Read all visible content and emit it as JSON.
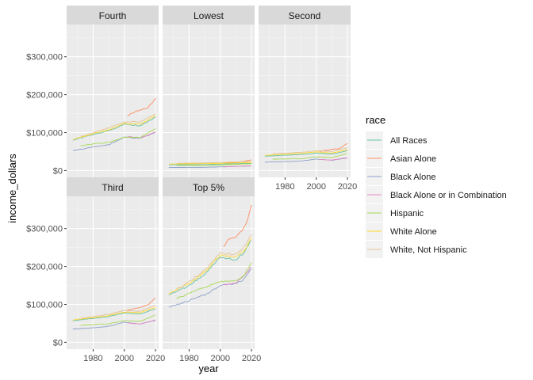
{
  "chart_data": {
    "type": "line",
    "xlabel": "year",
    "ylabel": "income_dollars",
    "x_ticks": [
      1980,
      2000,
      2020
    ],
    "y_ticks": [
      0,
      100000,
      200000,
      300000
    ],
    "y_tick_labels": [
      "$0",
      "$100,000",
      "$200,000",
      "$300,000"
    ],
    "xlim": [
      1963,
      2022
    ],
    "ylim": [
      -18000,
      385000
    ],
    "legend": {
      "title": "race",
      "position": "right",
      "entries": [
        "All Races",
        "Asian Alone",
        "Black Alone",
        "Black Alone or in Combination",
        "Hispanic",
        "White Alone",
        "White, Not Hispanic"
      ]
    },
    "colors": {
      "All Races": "#66c2a5",
      "Asian Alone": "#fc8d62",
      "Black Alone": "#8da0cb",
      "Black Alone or in Combination": "#e78ac3",
      "Hispanic": "#a6d854",
      "White Alone": "#ffd92f",
      "White, Not Hispanic": "#e5c494"
    },
    "series_meta": {
      "All Races": {
        "start": 1967
      },
      "Asian Alone": {
        "start": 2002
      },
      "Black Alone": {
        "start": 1967
      },
      "Black Alone or in Combination": {
        "start": 2002
      },
      "Hispanic": {
        "start": 1972
      },
      "White Alone": {
        "start": 1967
      },
      "White, Not Hispanic": {
        "start": 1972
      }
    },
    "facets": [
      {
        "name": "Fourth",
        "anchors": {
          "All Races": [
            [
              1967,
              80000
            ],
            [
              1980,
              95000
            ],
            [
              1990,
              105000
            ],
            [
              2000,
              122000
            ],
            [
              2010,
              118000
            ],
            [
              2020,
              140000
            ]
          ],
          "Asian Alone": [
            [
              2002,
              145000
            ],
            [
              2010,
              160000
            ],
            [
              2015,
              165000
            ],
            [
              2020,
              190000
            ]
          ],
          "Black Alone": [
            [
              1967,
              52000
            ],
            [
              1980,
              62000
            ],
            [
              1990,
              68000
            ],
            [
              2000,
              88000
            ],
            [
              2010,
              85000
            ],
            [
              2020,
              100000
            ]
          ],
          "Black Alone or in Combination": [
            [
              2002,
              90000
            ],
            [
              2010,
              86000
            ],
            [
              2020,
              101000
            ]
          ],
          "Hispanic": [
            [
              1972,
              65000
            ],
            [
              1980,
              70000
            ],
            [
              1990,
              74000
            ],
            [
              2000,
              88000
            ],
            [
              2010,
              87000
            ],
            [
              2020,
              110000
            ]
          ],
          "White Alone": [
            [
              1967,
              82000
            ],
            [
              1980,
              97000
            ],
            [
              1990,
              108000
            ],
            [
              2000,
              124000
            ],
            [
              2010,
              122000
            ],
            [
              2020,
              145000
            ]
          ],
          "White, Not Hispanic": [
            [
              1972,
              90000
            ],
            [
              1980,
              100000
            ],
            [
              1990,
              112000
            ],
            [
              2000,
              128000
            ],
            [
              2010,
              128000
            ],
            [
              2020,
              150000
            ]
          ]
        }
      },
      {
        "name": "Lowest",
        "anchors": {
          "All Races": [
            [
              1967,
              15000
            ],
            [
              1990,
              16000
            ],
            [
              2020,
              19000
            ]
          ],
          "Asian Alone": [
            [
              2002,
              20000
            ],
            [
              2010,
              21000
            ],
            [
              2020,
              28000
            ]
          ],
          "Black Alone": [
            [
              1967,
              8000
            ],
            [
              1990,
              8500
            ],
            [
              2020,
              12000
            ]
          ],
          "Black Alone or in Combination": [
            [
              2002,
              9500
            ],
            [
              2020,
              12500
            ]
          ],
          "Hispanic": [
            [
              1972,
              13000
            ],
            [
              1990,
              12500
            ],
            [
              2020,
              18000
            ]
          ],
          "White Alone": [
            [
              1967,
              17000
            ],
            [
              1990,
              18000
            ],
            [
              2020,
              21000
            ]
          ],
          "White, Not Hispanic": [
            [
              1972,
              19000
            ],
            [
              1990,
              20000
            ],
            [
              2020,
              24000
            ]
          ]
        }
      },
      {
        "name": "Second",
        "anchors": {
          "All Races": [
            [
              1967,
              38000
            ],
            [
              1990,
              42000
            ],
            [
              2000,
              46000
            ],
            [
              2010,
              43000
            ],
            [
              2020,
              52000
            ]
          ],
          "Asian Alone": [
            [
              2002,
              50000
            ],
            [
              2010,
              56000
            ],
            [
              2015,
              58000
            ],
            [
              2020,
              72000
            ]
          ],
          "Black Alone": [
            [
              1967,
              22000
            ],
            [
              1990,
              25000
            ],
            [
              2000,
              30000
            ],
            [
              2010,
              27000
            ],
            [
              2020,
              33000
            ]
          ],
          "Black Alone or in Combination": [
            [
              2002,
              29000
            ],
            [
              2010,
              27500
            ],
            [
              2020,
              34000
            ]
          ],
          "Hispanic": [
            [
              1972,
              30000
            ],
            [
              1990,
              31000
            ],
            [
              2000,
              36000
            ],
            [
              2010,
              34000
            ],
            [
              2020,
              45000
            ]
          ],
          "White Alone": [
            [
              1967,
              40000
            ],
            [
              1990,
              45000
            ],
            [
              2000,
              49000
            ],
            [
              2010,
              46000
            ],
            [
              2020,
              55000
            ]
          ],
          "White, Not Hispanic": [
            [
              1972,
              44000
            ],
            [
              1990,
              48000
            ],
            [
              2000,
              52000
            ],
            [
              2010,
              50000
            ],
            [
              2020,
              60000
            ]
          ]
        }
      },
      {
        "name": "Third",
        "anchors": {
          "All Races": [
            [
              1967,
              57000
            ],
            [
              1980,
              63000
            ],
            [
              1990,
              68000
            ],
            [
              2000,
              78000
            ],
            [
              2010,
              74000
            ],
            [
              2020,
              88000
            ]
          ],
          "Asian Alone": [
            [
              2002,
              85000
            ],
            [
              2010,
              92000
            ],
            [
              2015,
              98000
            ],
            [
              2020,
              118000
            ]
          ],
          "Black Alone": [
            [
              1967,
              35000
            ],
            [
              1980,
              38000
            ],
            [
              1990,
              42000
            ],
            [
              2000,
              53000
            ],
            [
              2010,
              48000
            ],
            [
              2020,
              58000
            ]
          ],
          "Black Alone or in Combination": [
            [
              2002,
              51000
            ],
            [
              2010,
              48000
            ],
            [
              2020,
              59000
            ]
          ],
          "Hispanic": [
            [
              1972,
              45000
            ],
            [
              1980,
              47000
            ],
            [
              1990,
              49000
            ],
            [
              2000,
              57000
            ],
            [
              2010,
              55000
            ],
            [
              2020,
              72000
            ]
          ],
          "White Alone": [
            [
              1967,
              59000
            ],
            [
              1980,
              65000
            ],
            [
              1990,
              70000
            ],
            [
              2000,
              80000
            ],
            [
              2010,
              78000
            ],
            [
              2020,
              92000
            ]
          ],
          "White, Not Hispanic": [
            [
              1972,
              63000
            ],
            [
              1980,
              68000
            ],
            [
              1990,
              74000
            ],
            [
              2000,
              84000
            ],
            [
              2010,
              82000
            ],
            [
              2020,
              98000
            ]
          ]
        }
      },
      {
        "name": "Top 5%",
        "anchors": {
          "All Races": [
            [
              1967,
              125000
            ],
            [
              1980,
              150000
            ],
            [
              1990,
              180000
            ],
            [
              2000,
              225000
            ],
            [
              2010,
              218000
            ],
            [
              2015,
              235000
            ],
            [
              2020,
              270000
            ]
          ],
          "Asian Alone": [
            [
              2002,
              250000
            ],
            [
              2005,
              270000
            ],
            [
              2010,
              280000
            ],
            [
              2015,
              300000
            ],
            [
              2018,
              330000
            ],
            [
              2020,
              360000
            ]
          ],
          "Black Alone": [
            [
              1967,
              92000
            ],
            [
              1980,
              110000
            ],
            [
              1990,
              125000
            ],
            [
              2000,
              150000
            ],
            [
              2010,
              155000
            ],
            [
              2015,
              165000
            ],
            [
              2020,
              195000
            ]
          ],
          "Black Alone or in Combination": [
            [
              2002,
              152000
            ],
            [
              2010,
              155000
            ],
            [
              2020,
              198000
            ]
          ],
          "Hispanic": [
            [
              1972,
              115000
            ],
            [
              1980,
              130000
            ],
            [
              1990,
              145000
            ],
            [
              2000,
              160000
            ],
            [
              2010,
              162000
            ],
            [
              2015,
              175000
            ],
            [
              2020,
              210000
            ]
          ],
          "White Alone": [
            [
              1967,
              128000
            ],
            [
              1980,
              155000
            ],
            [
              1990,
              185000
            ],
            [
              2000,
              230000
            ],
            [
              2010,
              225000
            ],
            [
              2015,
              240000
            ],
            [
              2020,
              275000
            ]
          ],
          "White, Not Hispanic": [
            [
              1972,
              140000
            ],
            [
              1980,
              160000
            ],
            [
              1990,
              190000
            ],
            [
              2000,
              235000
            ],
            [
              2010,
              232000
            ],
            [
              2015,
              250000
            ],
            [
              2020,
              285000
            ]
          ]
        }
      }
    ]
  }
}
